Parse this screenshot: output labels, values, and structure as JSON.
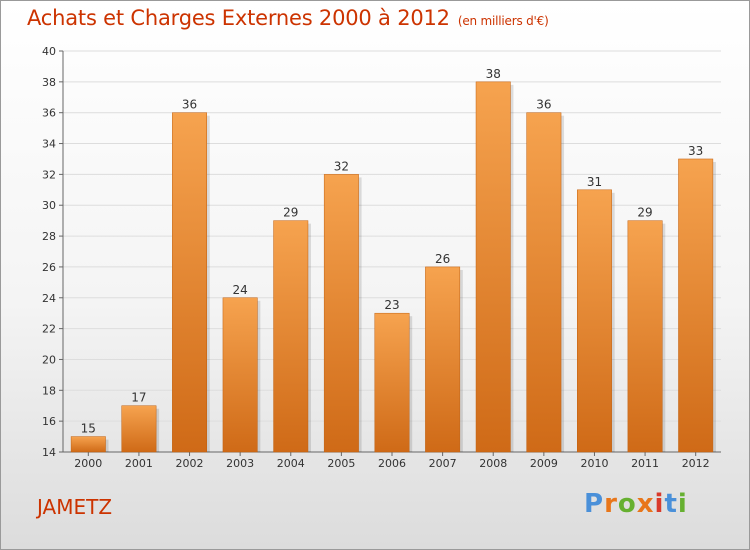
{
  "header": {
    "title": "Achats et Charges Externes 2000 à 2012",
    "unit": "(en milliers d'€)"
  },
  "footer": {
    "location": "JAMETZ",
    "logo_text": "Proxiti"
  },
  "colors": {
    "bar_top": "#f6a34f",
    "bar_bottom": "#cf6a17",
    "title": "#cc3300",
    "logo": [
      "#4a90d9",
      "#e8761a",
      "#66b030",
      "#e8761a",
      "#d93a2b",
      "#4a90d9",
      "#66b030"
    ]
  },
  "chart_data": {
    "type": "bar",
    "title": "Achats et Charges Externes 2000 à 2012",
    "subtitle": "(en milliers d'€)",
    "categories": [
      "2000",
      "2001",
      "2002",
      "2003",
      "2004",
      "2005",
      "2006",
      "2007",
      "2008",
      "2009",
      "2010",
      "2011",
      "2012"
    ],
    "values": [
      15,
      17,
      36,
      24,
      29,
      32,
      23,
      26,
      38,
      36,
      31,
      29,
      33
    ],
    "ylim": [
      14,
      40
    ],
    "yticks": [
      14,
      16,
      18,
      20,
      22,
      24,
      26,
      28,
      30,
      32,
      34,
      36,
      38,
      40
    ],
    "grid": true,
    "legend": "none"
  }
}
